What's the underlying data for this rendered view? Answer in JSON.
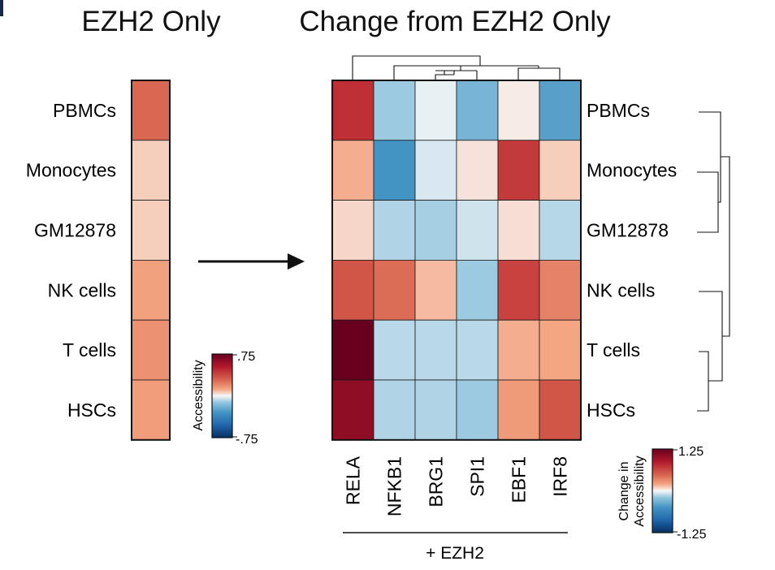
{
  "titles": {
    "left": "EZH2 Only",
    "right": "Change from EZH2 Only"
  },
  "colorbars": {
    "left": {
      "label": "Accessibility",
      "max_label": ".75",
      "min_label": "-.75"
    },
    "right": {
      "label_line1": "Change in",
      "label_line2": "Accessibility",
      "max_label": "1.25",
      "min_label": "-1.25"
    }
  },
  "x_group_label": "+ EZH2",
  "chart_data": [
    {
      "type": "heatmap",
      "title": "EZH2 Only",
      "rows": [
        "PBMCs",
        "Monocytes",
        "GM12878",
        "NK cells",
        "T cells",
        "HSCs"
      ],
      "columns": [
        ""
      ],
      "values": [
        [
          0.28
        ],
        [
          0.06
        ],
        [
          0.06
        ],
        [
          0.13
        ],
        [
          0.17
        ],
        [
          0.14
        ]
      ],
      "scale": {
        "min": -0.75,
        "max": 0.75,
        "colormap": "RdBu_r"
      },
      "legend": "Accessibility"
    },
    {
      "type": "heatmap",
      "title": "Change from EZH2 Only",
      "rows": [
        "PBMCs",
        "Monocytes",
        "GM12878",
        "NK cells",
        "T cells",
        "HSCs"
      ],
      "columns": [
        "RELA",
        "NFKB1",
        "BRG1",
        "SPI1",
        "EBF1",
        "IRF8"
      ],
      "values": [
        [
          0.75,
          -0.18,
          -0.03,
          -0.3,
          0.03,
          -0.42
        ],
        [
          0.18,
          -0.5,
          -0.06,
          0.05,
          0.7,
          0.1
        ],
        [
          0.08,
          -0.14,
          -0.16,
          -0.08,
          0.06,
          -0.13
        ],
        [
          0.55,
          0.45,
          0.15,
          -0.18,
          0.65,
          0.35
        ],
        [
          1.25,
          -0.12,
          -0.12,
          -0.12,
          0.18,
          0.2
        ],
        [
          1.05,
          -0.14,
          -0.14,
          -0.18,
          0.25,
          0.55
        ]
      ],
      "column_group": "+ EZH2",
      "scale": {
        "min": -1.25,
        "max": 1.25,
        "colormap": "RdBu_r"
      },
      "legend": "Change in Accessibility",
      "clustering": {
        "rows": true,
        "columns": true
      }
    }
  ]
}
